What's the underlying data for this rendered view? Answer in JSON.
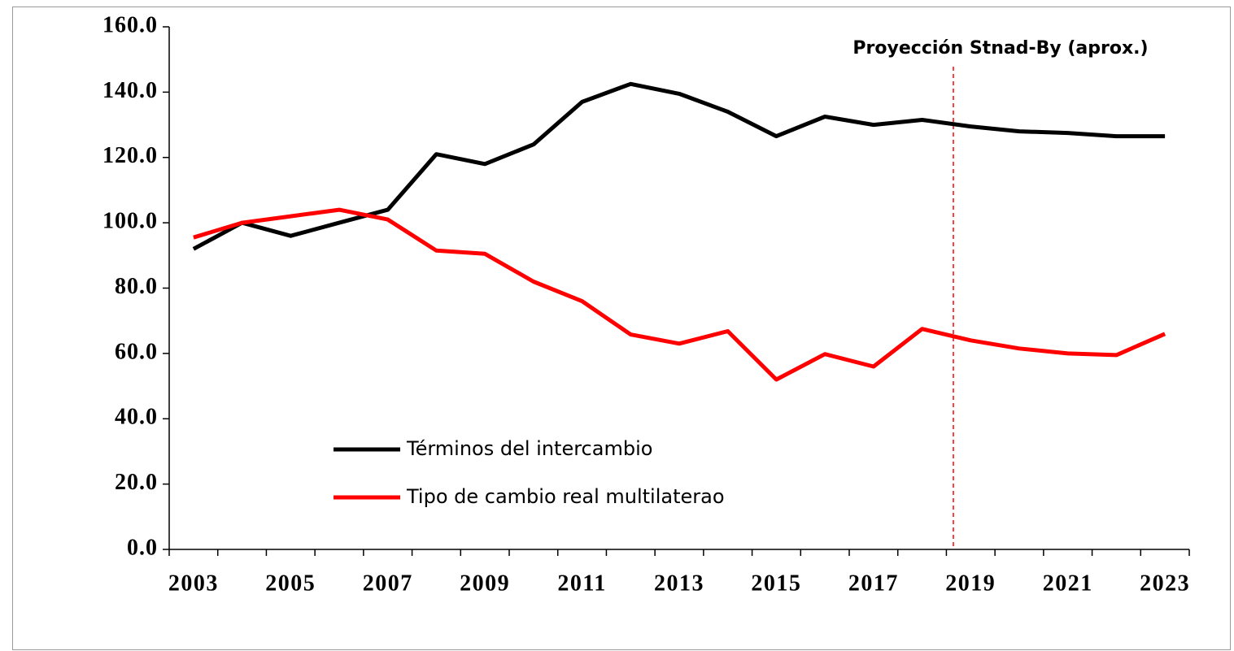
{
  "chart_data": {
    "type": "line",
    "annotation": "Proyección Stnad-By (aprox.)",
    "categories": [
      "2003",
      null,
      "2005",
      null,
      "2007",
      null,
      "2009",
      null,
      "2011",
      null,
      "2013",
      null,
      "2015",
      null,
      "2017",
      null,
      "2019",
      null,
      "2021",
      null,
      "2023"
    ],
    "series": [
      {
        "name": "Términos del intercambio",
        "color": "#000000",
        "values": [
          92,
          100,
          96,
          100,
          104,
          121,
          118,
          124,
          137,
          142.5,
          139.5,
          134,
          126.5,
          132.5,
          130,
          131.5,
          129.5,
          128,
          127.5,
          126.5,
          126.5
        ]
      },
      {
        "name": "Tipo de cambio real multilaterao",
        "color": "#ff0000",
        "values": [
          95.5,
          100,
          102,
          104,
          101,
          91.5,
          90.5,
          82,
          76,
          65.8,
          63,
          66.8,
          52,
          59.8,
          56,
          67.5,
          64,
          61.5,
          60,
          59.5,
          66
        ]
      }
    ],
    "ylim": [
      0,
      160
    ],
    "yticks": [
      {
        "value": 0,
        "label": "0.0"
      },
      {
        "value": 20,
        "label": "20.0"
      },
      {
        "value": 40,
        "label": "40.0"
      },
      {
        "value": 60,
        "label": "60.0"
      },
      {
        "value": 80,
        "label": "80.0"
      },
      {
        "value": 100,
        "label": "100.0"
      },
      {
        "value": 120,
        "label": "120.0"
      },
      {
        "value": 140,
        "label": "140.0"
      },
      {
        "value": 160,
        "label": "160.0"
      }
    ],
    "grid": false,
    "legend": "lower left"
  }
}
